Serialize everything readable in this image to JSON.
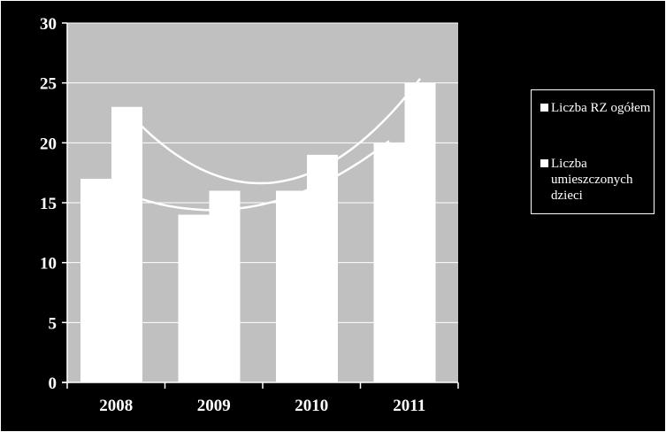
{
  "chart_data": {
    "type": "bar",
    "categories": [
      "2008",
      "2009",
      "2010",
      "2011"
    ],
    "series": [
      {
        "name": "Liczba RZ ogółem",
        "values": [
          17,
          14,
          16,
          20
        ]
      },
      {
        "name": "Liczba umieszczonych dzieci",
        "values": [
          23,
          16,
          19,
          25
        ]
      }
    ],
    "trendlines": "polynomial (one per series)",
    "ylim": [
      0,
      30
    ],
    "yticks": [
      "0",
      "5",
      "10",
      "15",
      "20",
      "25",
      "30"
    ],
    "grid": true,
    "legend_position": "right",
    "colors": {
      "plot_bg": "#c0c0c0",
      "bars": "#ffffff",
      "background": "#000000",
      "text": "#ffffff"
    }
  },
  "legend": {
    "items": [
      {
        "label": "Liczba RZ ogółem"
      },
      {
        "label": "Liczba umieszczonych dzieci"
      }
    ]
  }
}
